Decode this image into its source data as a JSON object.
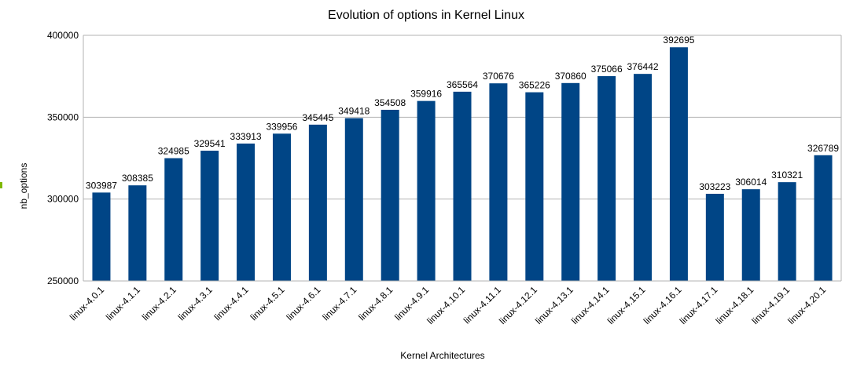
{
  "chart_data": {
    "type": "bar",
    "title": "Evolution of options in Kernel Linux",
    "xlabel": "Kernel Architectures",
    "ylabel": "nb_options",
    "categories": [
      "linux-4.0.1",
      "linux-4.1.1",
      "linux-4.2.1",
      "linux-4.3.1",
      "linux-4.4.1",
      "linux-4.5.1",
      "linux-4.6.1",
      "linux-4.7.1",
      "linux-4.8.1",
      "linux-4.9.1",
      "linux-4.10.1",
      "linux-4.11.1",
      "linux-4.12.1",
      "linux-4.13.1",
      "linux-4.14.1",
      "linux-4.15.1",
      "linux-4.16.1",
      "linux-4.17.1",
      "linux-4.18.1",
      "linux-4.19.1",
      "linux-4.20.1"
    ],
    "values": [
      303987,
      308385,
      324985,
      329541,
      333913,
      339956,
      345445,
      349418,
      354508,
      359916,
      365564,
      370676,
      365226,
      370860,
      375066,
      376442,
      392695,
      303223,
      306014,
      310321,
      326789
    ],
    "ylim": [
      250000,
      400000
    ],
    "yticks": [
      "400000",
      "350000",
      "300000",
      "250000"
    ],
    "ytick_values": [
      400000,
      350000,
      300000,
      250000
    ],
    "grid": true,
    "legend": "none",
    "bar_color": "#004586",
    "grid_color": "#b3b3b3",
    "legend_marker_color": "#7fb800"
  }
}
